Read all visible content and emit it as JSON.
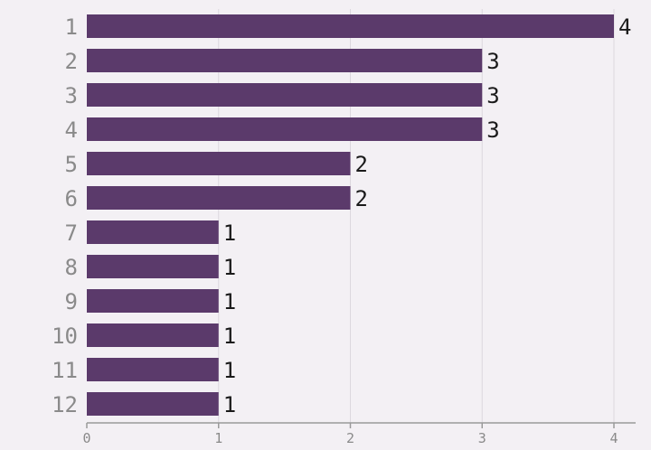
{
  "colors": {
    "bar": "#5b3a6b",
    "grid": "#dcd8de",
    "axis": "#9a9a9a",
    "background": "#f3f0f4"
  },
  "chart_data": {
    "type": "bar",
    "orientation": "horizontal",
    "categories": [
      "1",
      "2",
      "3",
      "4",
      "5",
      "6",
      "7",
      "8",
      "9",
      "10",
      "11",
      "12"
    ],
    "values": [
      4,
      3,
      3,
      3,
      2,
      2,
      1,
      1,
      1,
      1,
      1,
      1
    ],
    "xlim": [
      0,
      4
    ],
    "xticks": [
      "0",
      "1",
      "2",
      "3",
      "4"
    ],
    "grid": true,
    "title": "",
    "xlabel": "",
    "ylabel": ""
  }
}
